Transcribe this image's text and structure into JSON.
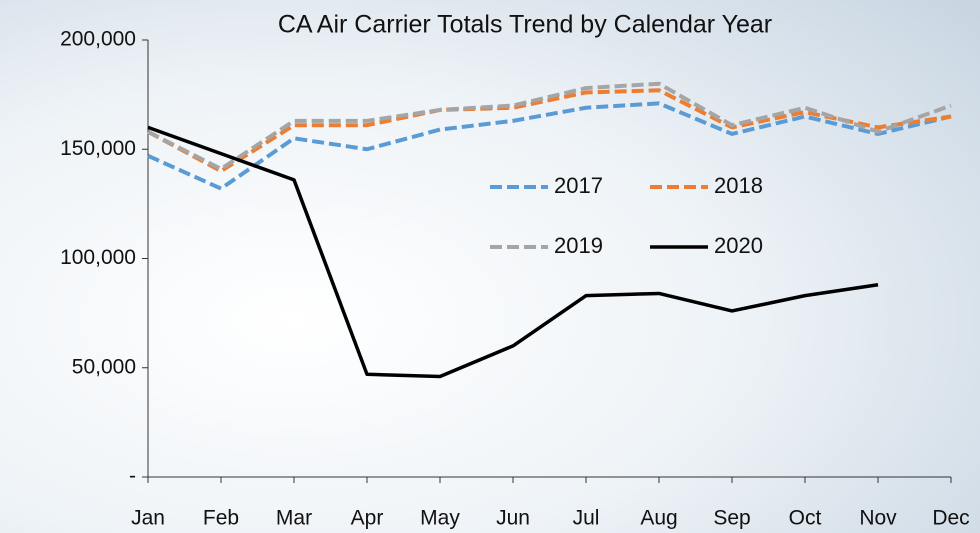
{
  "chart_data": {
    "type": "line",
    "title": "CA Air Carrier Totals Trend by Calendar Year",
    "categories": [
      "Jan",
      "Feb",
      "Mar",
      "Apr",
      "May",
      "Jun",
      "Jul",
      "Aug",
      "Sep",
      "Oct",
      "Nov",
      "Dec"
    ],
    "series": [
      {
        "name": "2017",
        "color": "#5b9bd5",
        "dash": true,
        "values": [
          147000,
          132000,
          155000,
          150000,
          159000,
          163000,
          169000,
          171000,
          157000,
          165000,
          157000,
          165000
        ]
      },
      {
        "name": "2018",
        "color": "#ed7d31",
        "dash": true,
        "values": [
          158000,
          140000,
          161000,
          161000,
          168000,
          169000,
          176000,
          177000,
          160000,
          167000,
          160000,
          165000
        ]
      },
      {
        "name": "2019",
        "color": "#a5a5a5",
        "dash": true,
        "values": [
          158000,
          141000,
          163000,
          163000,
          168000,
          170000,
          178000,
          180000,
          161000,
          169000,
          158000,
          170000
        ]
      },
      {
        "name": "2020",
        "color": "#000000",
        "dash": false,
        "values": [
          160000,
          148000,
          136000,
          47000,
          46000,
          60000,
          83000,
          84000,
          76000,
          83000,
          88000,
          null
        ]
      }
    ],
    "ylim": [
      0,
      200000
    ],
    "yticks": [
      {
        "value": 0,
        "label": "-"
      },
      {
        "value": 50000,
        "label": "50,000"
      },
      {
        "value": 100000,
        "label": "100,000"
      },
      {
        "value": 150000,
        "label": "150,000"
      },
      {
        "value": 200000,
        "label": "200,000"
      }
    ],
    "legend": "inside"
  }
}
